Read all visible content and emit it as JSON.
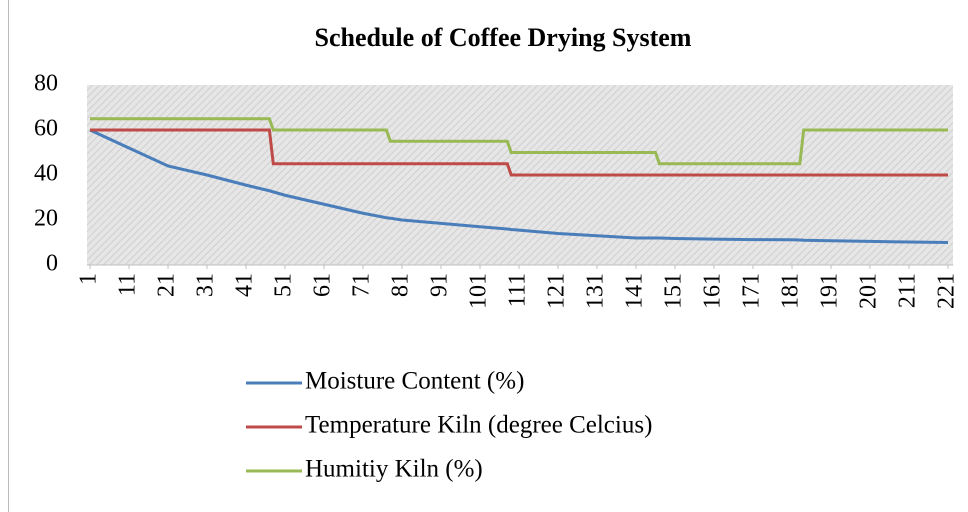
{
  "chart_data": {
    "type": "line",
    "title": "Schedule of Coffee Drying System",
    "x": [
      1,
      11,
      21,
      31,
      41,
      47,
      48,
      51,
      61,
      71,
      77,
      78,
      81,
      91,
      101,
      108,
      109,
      111,
      121,
      131,
      141,
      146,
      147,
      151,
      161,
      171,
      181,
      183,
      184,
      191,
      201,
      211,
      221
    ],
    "series": [
      {
        "name": "Moisture Content (%)",
        "color": "#4a7ebb",
        "values": [
          60,
          52,
          44,
          40,
          35.5,
          33,
          32.5,
          31,
          27,
          23,
          21,
          20.8,
          20,
          18.5,
          17,
          16,
          15.8,
          15.5,
          14,
          13,
          12,
          12,
          12,
          11.8,
          11.5,
          11.3,
          11.2,
          11.1,
          11,
          10.8,
          10.5,
          10.2,
          10
        ]
      },
      {
        "name": "Temperature Kiln (degree Celcius)",
        "color": "#be4b48",
        "values": [
          60,
          60,
          60,
          60,
          60,
          60,
          45,
          45,
          45,
          45,
          45,
          45,
          45,
          45,
          45,
          45,
          40,
          40,
          40,
          40,
          40,
          40,
          40,
          40,
          40,
          40,
          40,
          40,
          40,
          40,
          40,
          40,
          40
        ]
      },
      {
        "name": "Humitiy Kiln (%)",
        "color": "#98b954",
        "values": [
          65,
          65,
          65,
          65,
          65,
          65,
          60,
          60,
          60,
          60,
          60,
          55,
          55,
          55,
          55,
          55,
          50,
          50,
          50,
          50,
          50,
          50,
          45,
          45,
          45,
          45,
          45,
          45,
          60,
          60,
          60,
          60,
          60
        ]
      }
    ],
    "xlim": [
      1,
      221
    ],
    "xticks": [
      1,
      11,
      21,
      31,
      41,
      51,
      61,
      71,
      81,
      91,
      101,
      111,
      121,
      131,
      141,
      151,
      161,
      171,
      181,
      191,
      201,
      211,
      221
    ],
    "ylim": [
      0,
      80
    ],
    "yticks": [
      0,
      20,
      40,
      60,
      80
    ],
    "grid": false
  }
}
